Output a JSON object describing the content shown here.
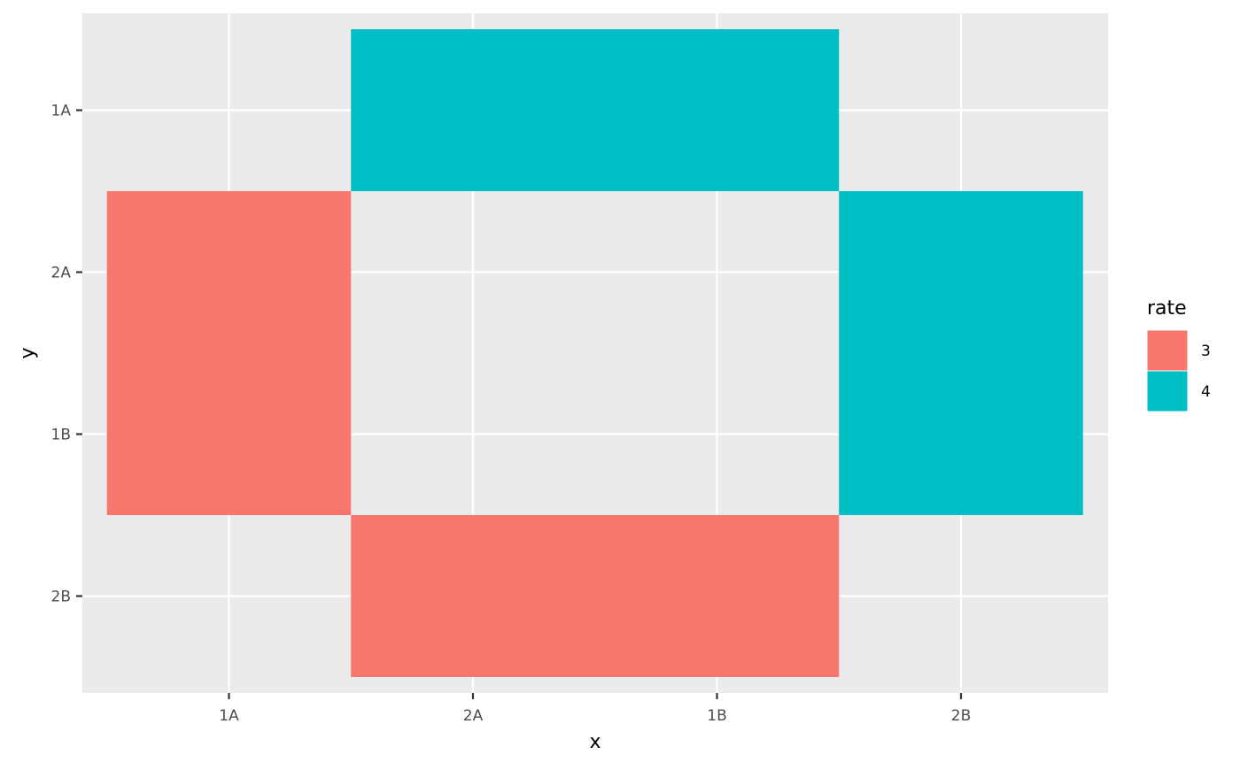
{
  "chart_data": {
    "type": "heatmap",
    "xlabel": "x",
    "ylabel": "y",
    "x_categories": [
      "1A",
      "2A",
      "1B",
      "2B"
    ],
    "y_categories": [
      "1A",
      "2A",
      "1B",
      "2B"
    ],
    "legend": {
      "title": "rate",
      "placement": "right",
      "entries": [
        {
          "label": "3",
          "color": "#F8766D"
        },
        {
          "label": "4",
          "color": "#00BFC4"
        }
      ]
    },
    "tiles": [
      {
        "x_from": "2A",
        "x_to": "1B",
        "y_from": "1A",
        "y_to": "1A",
        "rate": "4"
      },
      {
        "x_from": "1A",
        "x_to": "1A",
        "y_from": "2A",
        "y_to": "1B",
        "rate": "3"
      },
      {
        "x_from": "2B",
        "x_to": "2B",
        "y_from": "2A",
        "y_to": "1B",
        "rate": "4"
      },
      {
        "x_from": "2A",
        "x_to": "1B",
        "y_from": "2B",
        "y_to": "2B",
        "rate": "3"
      }
    ],
    "panel_background": "#EBEBEB",
    "grid": true
  }
}
